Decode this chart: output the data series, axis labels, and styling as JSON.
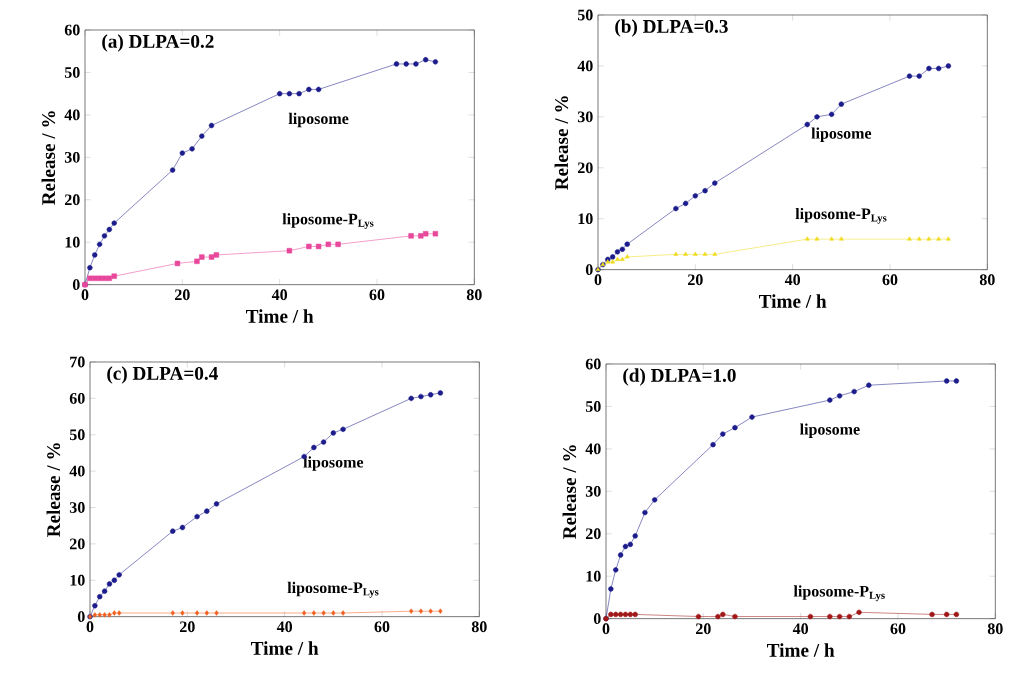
{
  "chart_data": [
    {
      "type": "line",
      "title": "(a) DLPA=0.2",
      "xlabel": "Time / h",
      "ylabel": "Release / %",
      "xlim": [
        0,
        80
      ],
      "xticks": [
        0,
        20,
        40,
        60,
        80
      ],
      "ylim": [
        0,
        60
      ],
      "yticks": [
        0,
        10,
        20,
        30,
        40,
        50,
        60
      ],
      "series": [
        {
          "name": "liposome",
          "color": "#1c1c8c",
          "marker": "circle",
          "x": [
            0,
            1,
            2,
            3,
            4,
            5,
            6,
            18,
            20,
            22,
            24,
            26,
            40,
            42,
            44,
            46,
            48,
            64,
            66,
            68,
            70,
            72
          ],
          "values": [
            0,
            4,
            7,
            9.5,
            11.5,
            13,
            14.5,
            27,
            31,
            32,
            35,
            37.5,
            45,
            45,
            45,
            46,
            46,
            52,
            52,
            52,
            53,
            52.5
          ]
        },
        {
          "name": "liposome-P$_{Lys}$",
          "color": "#e8489c",
          "marker": "square",
          "x": [
            0,
            1,
            2,
            3,
            4,
            5,
            6,
            19,
            23,
            24,
            26,
            27,
            42,
            46,
            48,
            50,
            52,
            67,
            69,
            70,
            72
          ],
          "values": [
            0,
            1.5,
            1.5,
            1.5,
            1.5,
            1.5,
            2,
            5,
            5.5,
            6.5,
            6.5,
            7,
            8,
            9,
            9,
            9.5,
            9.5,
            11.5,
            11.5,
            12,
            12
          ]
        }
      ]
    },
    {
      "type": "line",
      "title": "(b) DLPA=0.3",
      "xlabel": "Time / h",
      "ylabel": "Release / %",
      "xlim": [
        0,
        80
      ],
      "xticks": [
        0,
        20,
        40,
        60,
        80
      ],
      "ylim": [
        0,
        50
      ],
      "yticks": [
        0,
        10,
        20,
        30,
        40,
        50
      ],
      "series": [
        {
          "name": "liposome",
          "color": "#1c1c8c",
          "marker": "circle",
          "x": [
            0,
            1,
            2,
            3,
            4,
            5,
            6,
            16,
            18,
            20,
            22,
            24,
            43,
            45,
            48,
            50,
            64,
            66,
            68,
            70,
            72
          ],
          "values": [
            0,
            1,
            2,
            2.5,
            3.5,
            4,
            5,
            12,
            13,
            14.5,
            15.5,
            17,
            28.5,
            30,
            30.5,
            32.5,
            38,
            38,
            39.5,
            39.5,
            40
          ]
        },
        {
          "name": "liposome-P$_{Lys}$",
          "color": "#f0dc1e",
          "marker": "triangle",
          "x": [
            0,
            1,
            2,
            3,
            4,
            5,
            6,
            16,
            18,
            20,
            22,
            24,
            43,
            45,
            48,
            50,
            64,
            66,
            68,
            70,
            72
          ],
          "values": [
            0,
            1,
            1.5,
            1.5,
            2,
            2,
            2.5,
            3,
            3,
            3,
            3,
            3,
            6,
            6,
            6,
            6,
            6,
            6,
            6,
            6,
            6
          ]
        }
      ]
    },
    {
      "type": "line",
      "title": "(c) DLPA=0.4",
      "xlabel": "Time / h",
      "ylabel": "Release / %",
      "xlim": [
        0,
        80
      ],
      "xticks": [
        0,
        20,
        40,
        60,
        80
      ],
      "ylim": [
        0,
        70
      ],
      "yticks": [
        0,
        10,
        20,
        30,
        40,
        50,
        60,
        70
      ],
      "series": [
        {
          "name": "liposome",
          "color": "#1c1c8c",
          "marker": "circle",
          "x": [
            0,
            1,
            2,
            3,
            4,
            5,
            6,
            17,
            19,
            22,
            24,
            26,
            44,
            46,
            48,
            50,
            52,
            66,
            68,
            70,
            72
          ],
          "values": [
            0,
            3,
            5.5,
            7,
            9,
            10,
            11.5,
            23.5,
            24.5,
            27.5,
            29,
            31,
            44,
            46.5,
            48,
            50.5,
            51.5,
            60,
            60.5,
            61,
            61.5
          ]
        },
        {
          "name": "liposome-P$_{Lys}$",
          "color": "#f06020",
          "marker": "diamond",
          "x": [
            0,
            1,
            2,
            3,
            4,
            5,
            6,
            17,
            19,
            22,
            24,
            26,
            44,
            46,
            48,
            50,
            52,
            66,
            68,
            70,
            72
          ],
          "values": [
            0,
            0.5,
            0.5,
            0.5,
            0.5,
            1,
            1,
            1,
            1,
            1,
            1,
            1,
            1,
            1,
            1,
            1,
            1,
            1.5,
            1.5,
            1.5,
            1.5
          ]
        }
      ]
    },
    {
      "type": "line",
      "title": "(d) DLPA=1.0",
      "xlabel": "Time / h",
      "ylabel": "Release / %",
      "xlim": [
        0,
        80
      ],
      "xticks": [
        0,
        20,
        40,
        60,
        80
      ],
      "ylim": [
        0,
        60
      ],
      "yticks": [
        0,
        10,
        20,
        30,
        40,
        50,
        60
      ],
      "series": [
        {
          "name": "liposome",
          "color": "#1c1c8c",
          "marker": "circle",
          "x": [
            0,
            1,
            2,
            3,
            4,
            5,
            6,
            8,
            10,
            22,
            24,
            26.5,
            30,
            46,
            48,
            51,
            54,
            70,
            72
          ],
          "values": [
            0,
            7,
            11.5,
            15,
            17,
            17.5,
            19.5,
            25,
            28,
            41,
            43.5,
            45,
            47.5,
            51.5,
            52.5,
            53.5,
            55,
            56,
            56
          ]
        },
        {
          "name": "liposome-P$_{Lys}$",
          "color": "#a01818",
          "marker": "circle",
          "x": [
            0,
            1,
            2,
            3,
            4,
            5,
            6,
            19,
            23,
            24,
            26.5,
            42,
            46,
            48,
            50,
            52,
            67,
            70,
            72
          ],
          "values": [
            0,
            1,
            1,
            1,
            1,
            1,
            1,
            0.5,
            0.5,
            1,
            0.5,
            0.5,
            0.5,
            0.5,
            0.5,
            1.5,
            1,
            1,
            1
          ]
        }
      ]
    }
  ]
}
